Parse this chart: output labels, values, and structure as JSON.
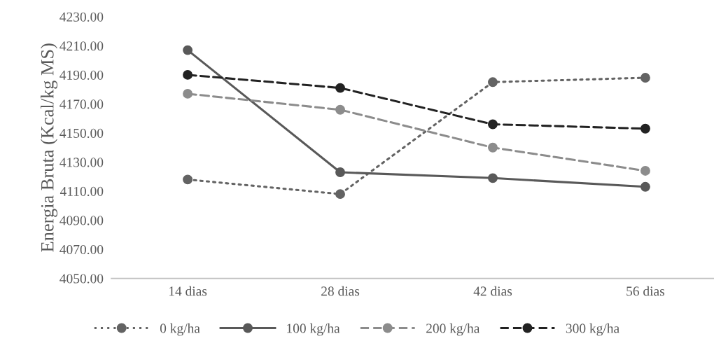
{
  "chart_data": {
    "type": "line",
    "ylabel": "Energia Bruta (Kcal/kg MS)",
    "categories": [
      "14 dias",
      "28 dias",
      "42 dias",
      "56 dias"
    ],
    "series": [
      {
        "name": "0 kg/ha",
        "color": "#636363",
        "line_style": "dotted",
        "values": [
          4118,
          4108,
          4185,
          4188
        ]
      },
      {
        "name": "100 kg/ha",
        "color": "#595959",
        "line_style": "solid",
        "values": [
          4207,
          4123,
          4119,
          4113
        ]
      },
      {
        "name": "200 kg/ha",
        "color": "#8c8c8c",
        "line_style": "dashed",
        "values": [
          4177,
          4166,
          4140,
          4124
        ]
      },
      {
        "name": "300 kg/ha",
        "color": "#222222",
        "line_style": "dashed",
        "values": [
          4190,
          4181,
          4156,
          4153
        ]
      }
    ],
    "ylim": [
      4050,
      4230
    ],
    "yticks": [
      {
        "value": 4050,
        "label": "4050.00"
      },
      {
        "value": 4070,
        "label": "4070.00"
      },
      {
        "value": 4090,
        "label": "4090.00"
      },
      {
        "value": 4110,
        "label": "4110.00"
      },
      {
        "value": 4130,
        "label": "4130.00"
      },
      {
        "value": 4150,
        "label": "4150.00"
      },
      {
        "value": 4170,
        "label": "4170.00"
      },
      {
        "value": 4190,
        "label": "4190.00"
      },
      {
        "value": 4210,
        "label": "4210.00"
      },
      {
        "value": 4230,
        "label": "4230.00"
      }
    ],
    "grid": false,
    "marker": "circle",
    "legend": "bottom"
  }
}
